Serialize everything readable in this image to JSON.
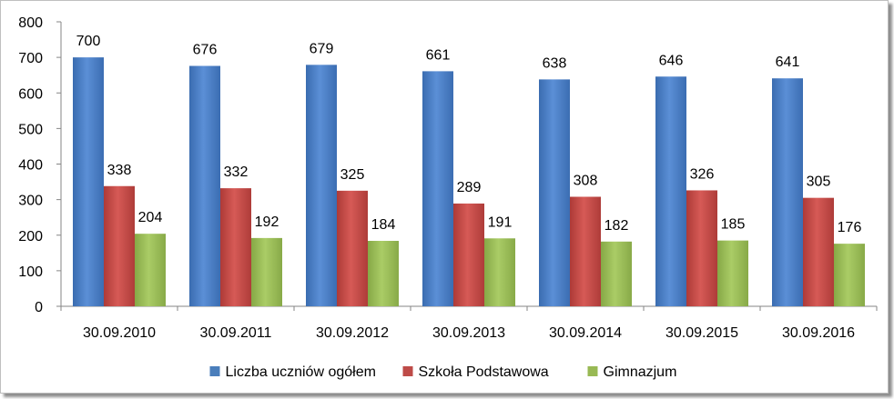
{
  "chart_data": {
    "type": "bar",
    "title": "",
    "xlabel": "",
    "ylabel": "",
    "ylim": [
      0,
      800
    ],
    "yticks": [
      0,
      100,
      200,
      300,
      400,
      500,
      600,
      700,
      800
    ],
    "grid": false,
    "legend": "bottom",
    "categories": [
      "30.09.2010",
      "30.09.2011",
      "30.09.2012",
      "30.09.2013",
      "30.09.2014",
      "30.09.2015",
      "30.09.2016"
    ],
    "series": [
      {
        "name": "Liczba uczniów ogółem",
        "color": "#4a7ebb",
        "values": [
          700,
          676,
          679,
          661,
          638,
          646,
          641
        ]
      },
      {
        "name": "Szkoła Podstawowa",
        "color": "#be4b48",
        "values": [
          338,
          332,
          325,
          289,
          308,
          326,
          305
        ]
      },
      {
        "name": "Gimnazjum",
        "color": "#98b954",
        "values": [
          204,
          192,
          184,
          191,
          182,
          185,
          176
        ]
      }
    ]
  }
}
